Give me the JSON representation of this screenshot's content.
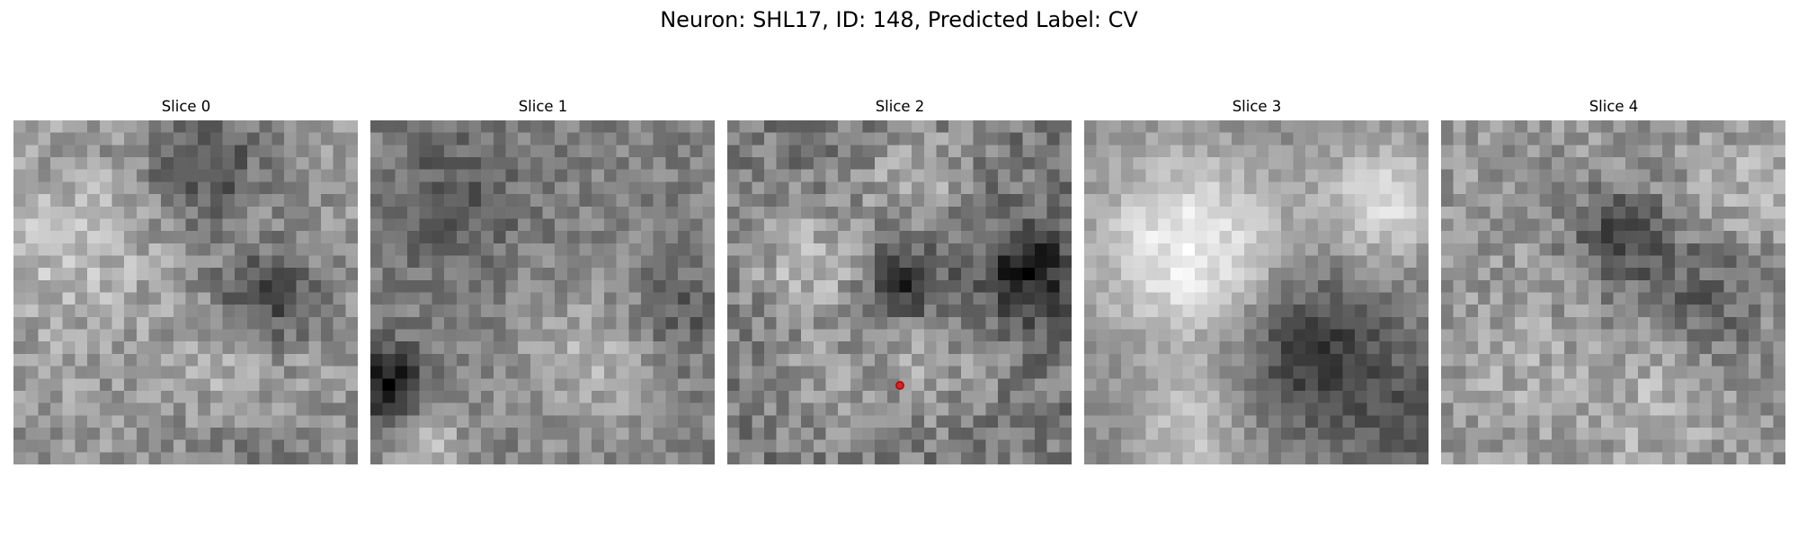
{
  "figure": {
    "title": "Neuron: SHL17, ID: 148, Predicted Label: CV"
  },
  "panels": [
    {
      "title": "Slice 0"
    },
    {
      "title": "Slice 1"
    },
    {
      "title": "Slice 2"
    },
    {
      "title": "Slice 3"
    },
    {
      "title": "Slice 4"
    }
  ],
  "colormap": "gray",
  "grid_size": 28,
  "marker": {
    "panel_index": 2,
    "color": "#d62728"
  }
}
